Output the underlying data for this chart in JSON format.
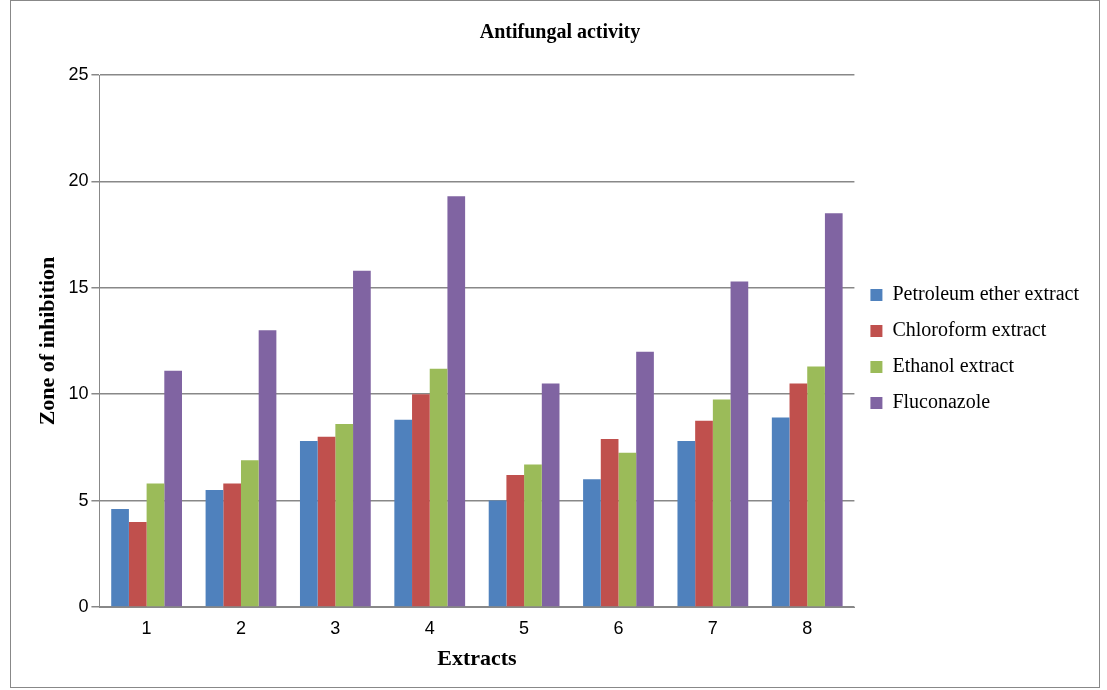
{
  "chart_data": {
    "type": "bar",
    "title": "Antifungal activity",
    "xlabel": "Extracts",
    "ylabel": "Zone of inhibition",
    "categories": [
      "1",
      "2",
      "3",
      "4",
      "5",
      "6",
      "7",
      "8"
    ],
    "series": [
      {
        "name": "Petroleum ether extract",
        "color": "#4f81bd",
        "values": [
          4.6,
          5.5,
          7.8,
          8.8,
          5.0,
          6.0,
          7.8,
          8.9
        ]
      },
      {
        "name": "Chloroform extract",
        "color": "#c0504d",
        "values": [
          4.0,
          5.8,
          8.0,
          10.0,
          6.2,
          7.9,
          8.75,
          10.5
        ]
      },
      {
        "name": "Ethanol extract",
        "color": "#9bbb59",
        "values": [
          5.8,
          6.9,
          8.6,
          11.2,
          6.7,
          7.25,
          9.75,
          11.3
        ]
      },
      {
        "name": "Fluconazole",
        "color": "#8064a2",
        "values": [
          11.1,
          13.0,
          15.8,
          19.3,
          10.5,
          12.0,
          15.3,
          18.5
        ]
      }
    ],
    "ylim": [
      0,
      25
    ],
    "yticks": [
      0,
      5,
      10,
      15,
      20,
      25
    ],
    "grid": "y",
    "legend": "right"
  }
}
